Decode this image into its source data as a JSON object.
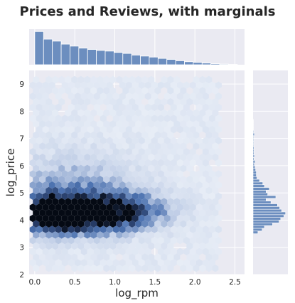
{
  "chart_data": [
    {
      "panel": "joint",
      "type": "heatmap",
      "kind": "hexbin",
      "title": "Prices and Reviews, with marginals",
      "xlabel": "log_rpm",
      "ylabel": "log_price",
      "xlim": [
        -0.07,
        2.62
      ],
      "ylim": [
        2.0,
        9.5
      ],
      "xticks": [
        "0.0",
        "0.5",
        "1.0",
        "1.5",
        "2.0",
        "2.5"
      ],
      "yticks": [
        "2",
        "3",
        "4",
        "5",
        "6",
        "7",
        "8",
        "9"
      ],
      "grid": true,
      "colormap": "light-to-dark blue",
      "density_clusters": [
        {
          "x": 0.2,
          "y": 4.2,
          "spread_x": 0.35,
          "spread_y": 0.45,
          "weight": 1.0
        },
        {
          "x": 0.65,
          "y": 4.3,
          "spread_x": 0.45,
          "spread_y": 0.45,
          "weight": 0.75
        },
        {
          "x": 1.1,
          "y": 4.3,
          "spread_x": 0.4,
          "spread_y": 0.45,
          "weight": 0.45
        },
        {
          "x": 0.45,
          "y": 5.1,
          "spread_x": 0.55,
          "spread_y": 0.9,
          "weight": 0.3
        }
      ]
    },
    {
      "panel": "marginal-x",
      "type": "bar",
      "bin_edges": [
        0.0,
        0.11,
        0.22,
        0.33,
        0.44,
        0.55,
        0.66,
        0.77,
        0.88,
        0.99,
        1.1,
        1.21,
        1.32,
        1.43,
        1.54,
        1.65,
        1.76,
        1.87,
        1.98,
        2.09,
        2.2,
        2.31,
        2.42,
        2.53
      ],
      "values": [
        100,
        77,
        71,
        62,
        56,
        50,
        46,
        43,
        41,
        37,
        34,
        29,
        26,
        23,
        19,
        16,
        12,
        9,
        7,
        5,
        3,
        2,
        1
      ]
    },
    {
      "panel": "marginal-y",
      "type": "bar",
      "orientation": "horizontal",
      "bin_edges": [
        3.5,
        3.6,
        3.7,
        3.8,
        3.9,
        4.0,
        4.1,
        4.2,
        4.3,
        4.4,
        4.5,
        4.6,
        4.7,
        4.8,
        4.9,
        5.0,
        5.1,
        5.2,
        5.3,
        5.4,
        5.5,
        5.6,
        5.7,
        5.8,
        5.9,
        6.0,
        6.1,
        6.2,
        6.3,
        6.4,
        6.5,
        6.6,
        6.7,
        6.8,
        6.9,
        7.0,
        7.1,
        7.2,
        7.3,
        7.4,
        7.5,
        7.6,
        7.7
      ],
      "values": [
        15,
        28,
        35,
        60,
        80,
        85,
        95,
        100,
        88,
        82,
        75,
        55,
        40,
        70,
        45,
        40,
        50,
        35,
        30,
        20,
        12,
        10,
        10,
        8,
        6,
        4,
        6,
        3,
        4,
        3,
        3,
        3,
        2,
        2,
        2,
        2,
        4,
        2,
        1,
        1,
        1,
        1
      ]
    }
  ],
  "colors": {
    "panel_background": "#eaeaf2",
    "grid": "#ffffff",
    "bar_fill": "#6c8ebf",
    "bar_edge": "#ffffff",
    "hex_light": "#e6ebf5",
    "hex_mid": "#4c72b0",
    "hex_dark": "#050a14",
    "text": "#262626"
  }
}
